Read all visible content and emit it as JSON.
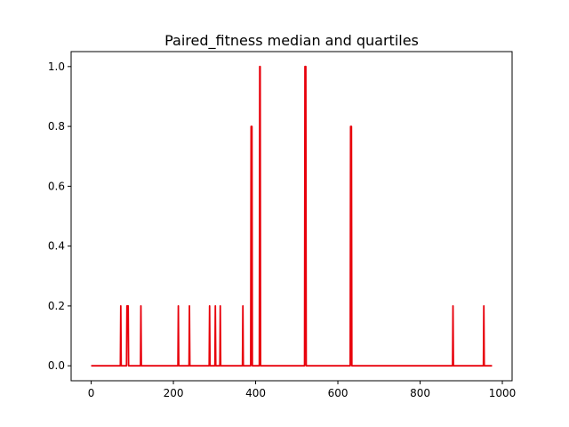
{
  "chart_data": {
    "type": "line",
    "title": "Paired_fitness median and quartiles",
    "xlabel": "",
    "ylabel": "",
    "xlim": [
      -48.75,
      1023.75
    ],
    "ylim": [
      -0.05,
      1.05
    ],
    "xticks": [
      0,
      200,
      400,
      600,
      800,
      1000
    ],
    "xtick_labels": [
      "0",
      "200",
      "400",
      "600",
      "800",
      "1000"
    ],
    "yticks": [
      0.0,
      0.2,
      0.4,
      0.6,
      0.8,
      1.0
    ],
    "ytick_labels": [
      "0.0",
      "0.2",
      "0.4",
      "0.6",
      "0.8",
      "1.0"
    ],
    "grid": false,
    "series_color": "#e8000b",
    "series": [
      {
        "color": "#e8000b",
        "x": [
          0,
          71,
          72,
          73,
          86,
          87,
          88,
          89,
          90,
          91,
          120,
          121,
          122,
          211,
          212,
          213,
          238,
          239,
          240,
          287,
          288,
          289,
          301,
          302,
          303,
          313,
          314,
          315,
          368,
          369,
          370,
          388,
          389,
          390,
          391,
          392,
          409,
          410,
          411,
          412,
          519,
          520,
          521,
          522,
          523,
          630,
          631,
          632,
          633,
          634,
          879,
          880,
          881,
          954,
          955,
          956,
          975
        ],
        "y": [
          0,
          0,
          0.2,
          0,
          0,
          0.2,
          0.2,
          0.2,
          0.2,
          0,
          0,
          0.2,
          0,
          0,
          0.2,
          0,
          0,
          0.2,
          0,
          0,
          0.2,
          0,
          0,
          0.2,
          0,
          0,
          0.2,
          0,
          0,
          0.2,
          0,
          0,
          0.8,
          0.8,
          0.8,
          0,
          0,
          1.0,
          1.0,
          0,
          0,
          1.0,
          1.0,
          1.0,
          0,
          0,
          0.8,
          0.8,
          0.8,
          0,
          0,
          0.2,
          0,
          0,
          0.2,
          0,
          0
        ]
      }
    ]
  }
}
